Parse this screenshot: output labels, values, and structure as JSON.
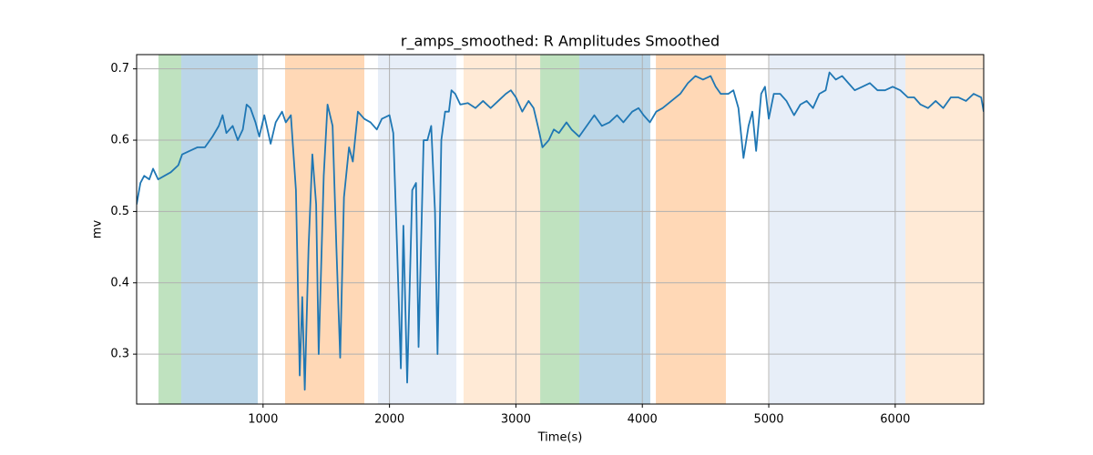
{
  "chart_data": {
    "type": "line",
    "title": "r_amps_smoothed: R Amplitudes Smoothed",
    "xlabel": "Time(s)",
    "ylabel": "mv",
    "xlim": [
      0,
      6700
    ],
    "ylim": [
      0.23,
      0.72
    ],
    "xticks": [
      1000,
      2000,
      3000,
      4000,
      5000,
      6000
    ],
    "yticks": [
      0.3,
      0.4,
      0.5,
      0.6,
      0.7
    ],
    "grid": true,
    "spans": [
      {
        "start": 173,
        "end": 353,
        "color": "#2ca02c"
      },
      {
        "start": 353,
        "end": 958,
        "color": "#1f77b4"
      },
      {
        "start": 1174,
        "end": 1801,
        "color": "#ff7f0e"
      },
      {
        "start": 1909,
        "end": 2529,
        "color": "#aec7e8"
      },
      {
        "start": 2586,
        "end": 3192,
        "color": "#ffbb78"
      },
      {
        "start": 3192,
        "end": 3501,
        "color": "#2ca02c"
      },
      {
        "start": 3501,
        "end": 4063,
        "color": "#1f77b4"
      },
      {
        "start": 4107,
        "end": 4661,
        "color": "#ff7f0e"
      },
      {
        "start": 5007,
        "end": 6081,
        "color": "#aec7e8"
      },
      {
        "start": 6081,
        "end": 6700,
        "color": "#ffbb78"
      }
    ],
    "x": [
      0,
      30,
      60,
      100,
      130,
      170,
      220,
      270,
      330,
      360,
      420,
      480,
      540,
      600,
      650,
      680,
      710,
      760,
      800,
      840,
      870,
      900,
      940,
      970,
      1010,
      1060,
      1100,
      1150,
      1180,
      1220,
      1260,
      1290,
      1310,
      1330,
      1360,
      1390,
      1420,
      1440,
      1480,
      1510,
      1550,
      1580,
      1610,
      1640,
      1680,
      1710,
      1750,
      1800,
      1850,
      1900,
      1940,
      2000,
      2030,
      2060,
      2090,
      2110,
      2140,
      2180,
      2210,
      2230,
      2270,
      2300,
      2330,
      2360,
      2380,
      2410,
      2440,
      2470,
      2490,
      2520,
      2560,
      2620,
      2680,
      2740,
      2800,
      2860,
      2920,
      2960,
      3000,
      3050,
      3100,
      3140,
      3180,
      3210,
      3260,
      3300,
      3340,
      3400,
      3440,
      3500,
      3560,
      3620,
      3680,
      3740,
      3800,
      3850,
      3920,
      3970,
      4010,
      4060,
      4110,
      4160,
      4230,
      4300,
      4360,
      4420,
      4480,
      4540,
      4580,
      4620,
      4680,
      4720,
      4760,
      4800,
      4840,
      4870,
      4900,
      4940,
      4970,
      5000,
      5040,
      5090,
      5140,
      5200,
      5250,
      5300,
      5350,
      5400,
      5450,
      5480,
      5530,
      5580,
      5630,
      5680,
      5740,
      5800,
      5860,
      5920,
      5980,
      6040,
      6100,
      6150,
      6200,
      6260,
      6320,
      6380,
      6440,
      6500,
      6560,
      6620,
      6680,
      6700
    ],
    "series": [
      {
        "color": "#1f77b4",
        "values": [
          0.51,
          0.54,
          0.55,
          0.545,
          0.56,
          0.545,
          0.55,
          0.555,
          0.565,
          0.58,
          0.585,
          0.59,
          0.59,
          0.605,
          0.62,
          0.635,
          0.61,
          0.62,
          0.6,
          0.615,
          0.65,
          0.645,
          0.625,
          0.605,
          0.635,
          0.595,
          0.625,
          0.64,
          0.625,
          0.635,
          0.53,
          0.27,
          0.38,
          0.25,
          0.45,
          0.58,
          0.51,
          0.3,
          0.55,
          0.65,
          0.62,
          0.45,
          0.295,
          0.52,
          0.59,
          0.57,
          0.64,
          0.63,
          0.625,
          0.615,
          0.63,
          0.635,
          0.61,
          0.45,
          0.28,
          0.48,
          0.26,
          0.53,
          0.54,
          0.31,
          0.6,
          0.6,
          0.62,
          0.5,
          0.3,
          0.6,
          0.64,
          0.64,
          0.67,
          0.665,
          0.65,
          0.652,
          0.645,
          0.655,
          0.645,
          0.655,
          0.665,
          0.67,
          0.66,
          0.64,
          0.655,
          0.645,
          0.615,
          0.59,
          0.6,
          0.615,
          0.61,
          0.625,
          0.615,
          0.605,
          0.62,
          0.635,
          0.62,
          0.625,
          0.635,
          0.625,
          0.64,
          0.645,
          0.635,
          0.625,
          0.64,
          0.645,
          0.655,
          0.665,
          0.68,
          0.69,
          0.685,
          0.69,
          0.675,
          0.665,
          0.665,
          0.67,
          0.645,
          0.575,
          0.62,
          0.64,
          0.585,
          0.665,
          0.675,
          0.63,
          0.665,
          0.665,
          0.655,
          0.635,
          0.65,
          0.655,
          0.645,
          0.665,
          0.67,
          0.695,
          0.685,
          0.69,
          0.68,
          0.67,
          0.675,
          0.68,
          0.67,
          0.67,
          0.675,
          0.67,
          0.66,
          0.66,
          0.65,
          0.645,
          0.655,
          0.645,
          0.66,
          0.66,
          0.655,
          0.665,
          0.66,
          0.64
        ]
      }
    ]
  }
}
